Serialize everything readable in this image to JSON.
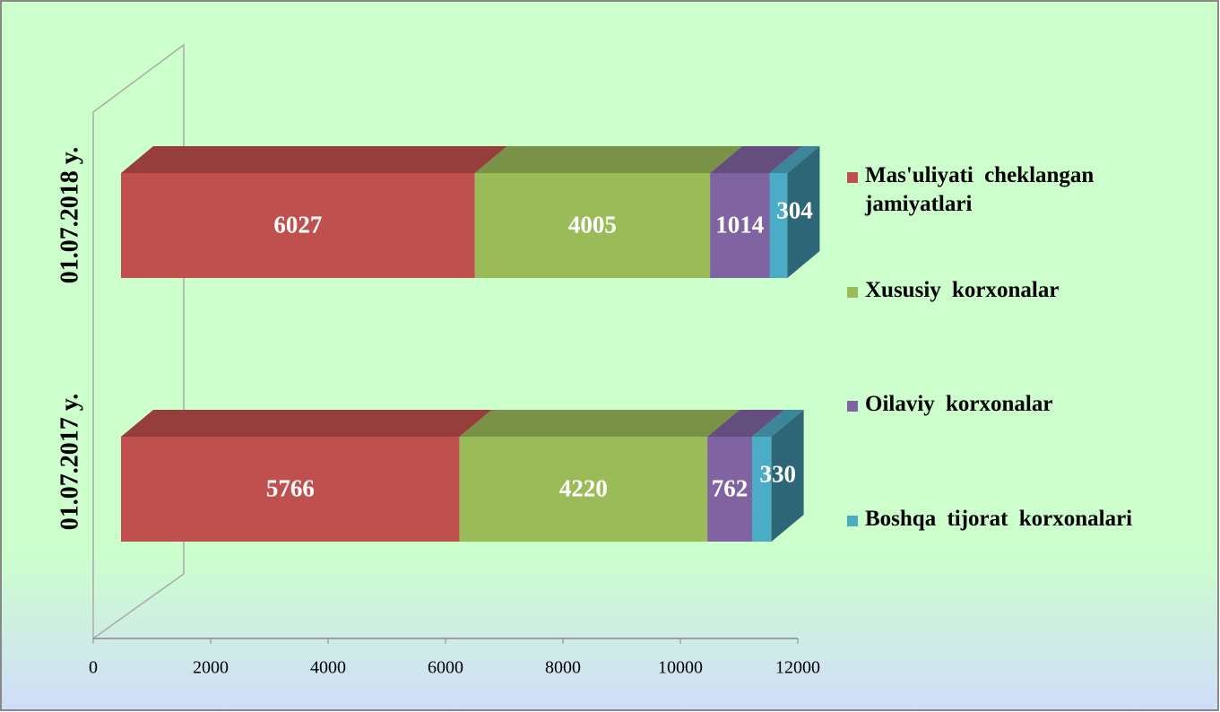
{
  "chart_data": {
    "type": "bar",
    "orientation": "horizontal",
    "stacked": true,
    "3d": true,
    "categories": [
      "01.07.2017 y.",
      "01.07.2018 y."
    ],
    "series": [
      {
        "name": "Mas'uliyati cheklangan jamiyatlari",
        "color": "#c0504d",
        "values": [
          5766,
          6027
        ]
      },
      {
        "name": "Xususiy korxonalar",
        "color": "#9bbb59",
        "values": [
          4220,
          4005
        ]
      },
      {
        "name": "Oilaviy korxonalar",
        "color": "#8064a2",
        "values": [
          762,
          1014
        ]
      },
      {
        "name": "Boshqa tijorat korxonalari",
        "color": "#4bacc6",
        "values": [
          330,
          304
        ]
      }
    ],
    "xlim": [
      0,
      12000
    ],
    "xticks": [
      0,
      2000,
      4000,
      6000,
      8000,
      10000,
      12000
    ],
    "legend": "right"
  }
}
